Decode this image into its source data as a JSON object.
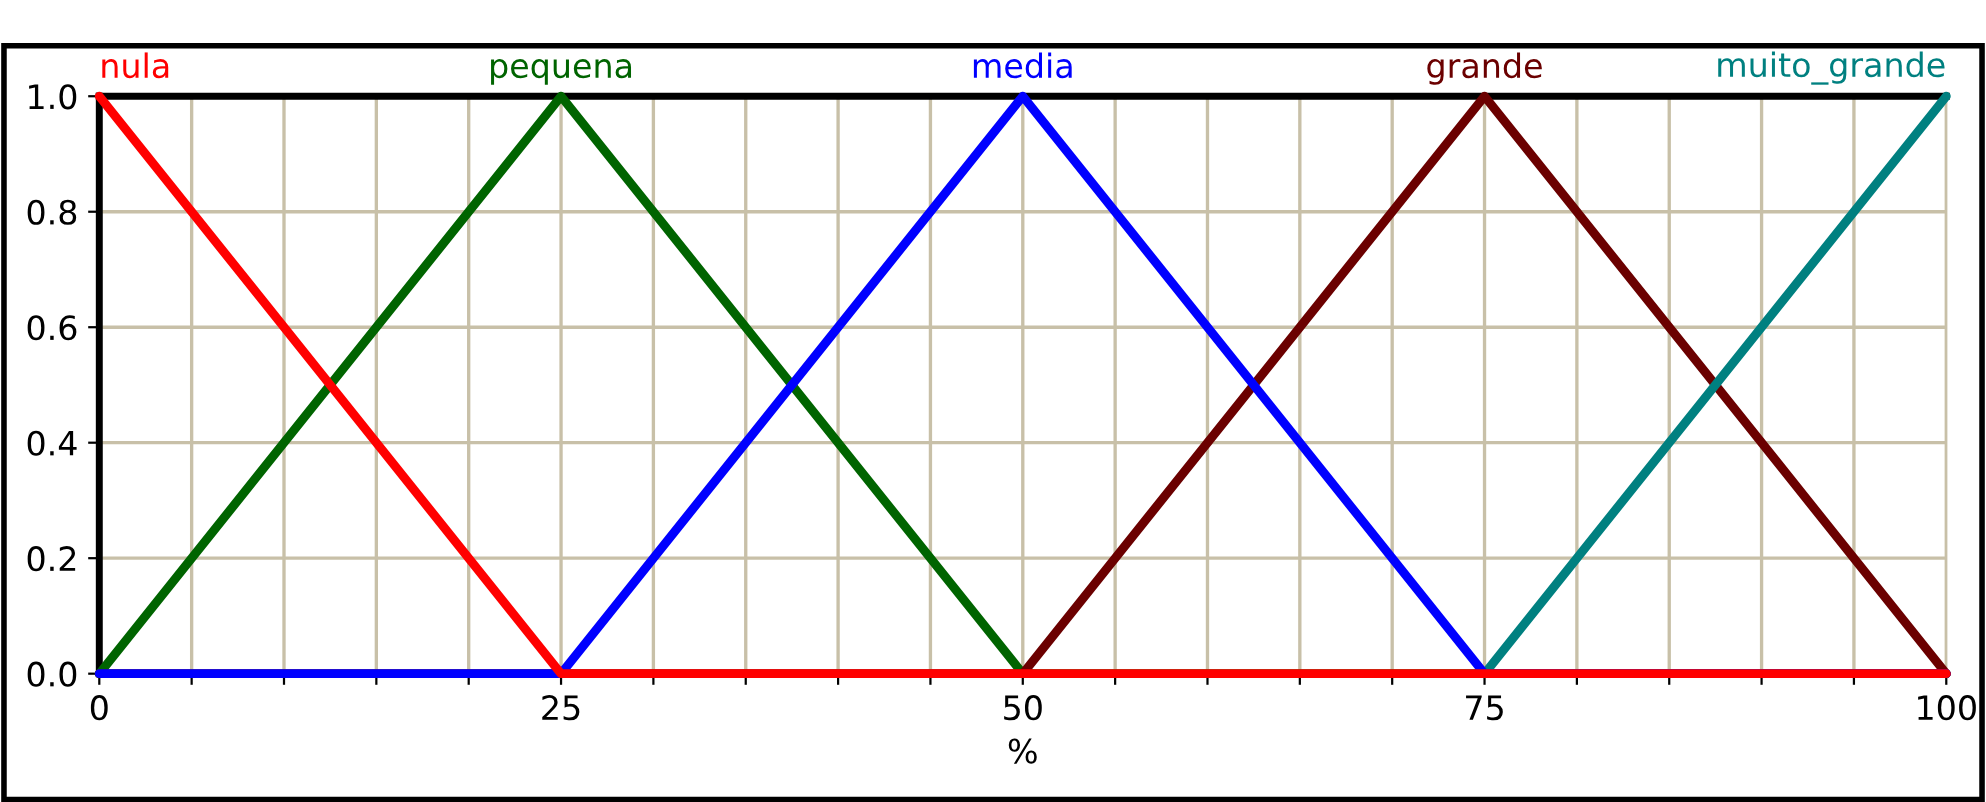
{
  "chart_data": {
    "type": "line",
    "xlabel": "%",
    "series": [
      {
        "name": "nula",
        "color": "#ff0000",
        "x": [
          0,
          25,
          100
        ],
        "values": [
          1.0,
          0.0,
          0.0
        ]
      },
      {
        "name": "pequena",
        "color": "#006400",
        "x": [
          0,
          25,
          50,
          100
        ],
        "values": [
          0.0,
          1.0,
          0.0,
          0.0
        ]
      },
      {
        "name": "media",
        "color": "#0000ff",
        "x": [
          0,
          25,
          50,
          75,
          100
        ],
        "values": [
          0.0,
          0.0,
          1.0,
          0.0,
          0.0
        ]
      },
      {
        "name": "grande",
        "color": "#6b0000",
        "x": [
          0,
          50,
          75,
          100
        ],
        "values": [
          0.0,
          0.0,
          1.0,
          0.0
        ]
      },
      {
        "name": "muito_grande",
        "color": "#008080",
        "x": [
          75,
          100
        ],
        "values": [
          0.0,
          1.0
        ]
      }
    ],
    "xlim": [
      0,
      100
    ],
    "ylim": [
      0.0,
      1.0
    ],
    "xticks": [
      0,
      {
        "value": 5,
        "label": null
      },
      {
        "value": 10,
        "label": null
      },
      {
        "value": 15,
        "label": null
      },
      {
        "value": 20,
        "label": null
      },
      25,
      {
        "value": 30,
        "label": null
      },
      {
        "value": 35,
        "label": null
      },
      {
        "value": 40,
        "label": null
      },
      {
        "value": 45,
        "label": null
      },
      50,
      {
        "value": 55,
        "label": null
      },
      {
        "value": 60,
        "label": null
      },
      {
        "value": 65,
        "label": null
      },
      {
        "value": 70,
        "label": null
      },
      75,
      {
        "value": 80,
        "label": null
      },
      {
        "value": 85,
        "label": null
      },
      {
        "value": 90,
        "label": null
      },
      {
        "value": 95,
        "label": null
      },
      100
    ],
    "yticks": [
      {
        "value": 0.0,
        "label": "0.0"
      },
      {
        "value": 0.2,
        "label": "0.2"
      },
      {
        "value": 0.4,
        "label": "0.4"
      },
      {
        "value": 0.6,
        "label": "0.6"
      },
      {
        "value": 0.8,
        "label": "0.8"
      },
      {
        "value": 1.0,
        "label": "1.0"
      }
    ],
    "grid": true,
    "legend": false,
    "marker": "none",
    "line_style": "solid"
  }
}
